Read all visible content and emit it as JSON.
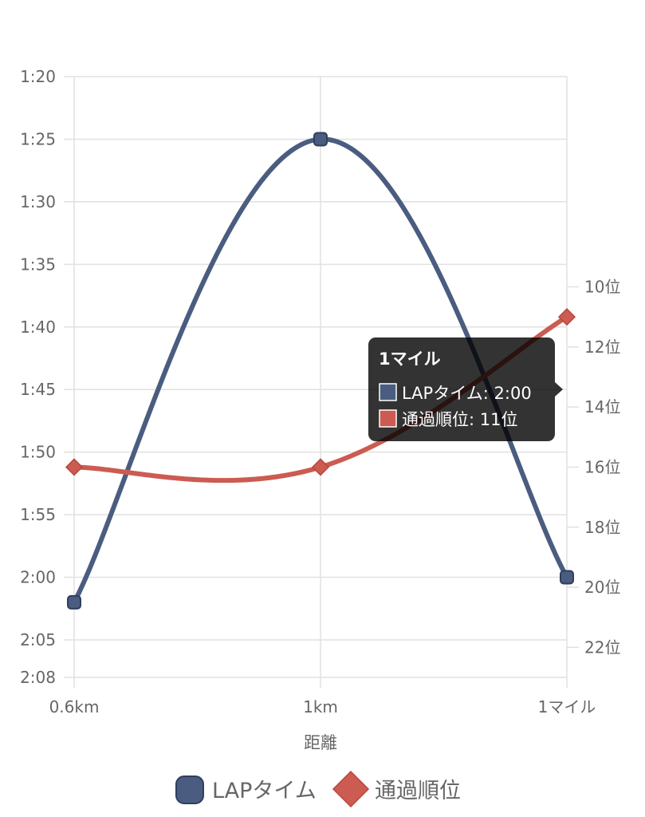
{
  "chart_data": {
    "type": "line",
    "categories": [
      "0.6km",
      "1km",
      "1マイル"
    ],
    "xlabel": "距離",
    "y_left": {
      "reversed": true,
      "range_seconds": [
        80,
        128
      ],
      "tick_values_seconds": [
        80,
        85,
        90,
        95,
        100,
        105,
        110,
        115,
        120,
        125,
        128
      ],
      "tick_labels": [
        "1:20",
        "1:25",
        "1:30",
        "1:35",
        "1:40",
        "1:45",
        "1:50",
        "1:55",
        "2:00",
        "2:05",
        "2:08"
      ]
    },
    "y_right": {
      "reversed": true,
      "range": [
        3,
        23
      ],
      "tick_values": [
        10,
        12,
        14,
        16,
        18,
        20,
        22
      ],
      "tick_labels": [
        "10位",
        "12位",
        "14位",
        "16位",
        "18位",
        "20位",
        "22位"
      ]
    },
    "series": [
      {
        "name": "LAPタイム",
        "axis": "left",
        "values": [
          122,
          85,
          120
        ],
        "color": "#4a5d80",
        "marker": "rounded-square"
      },
      {
        "name": "通過順位",
        "axis": "right",
        "values": [
          16,
          16,
          11
        ],
        "color": "#cc5b51",
        "marker": "diamond"
      }
    ],
    "tooltip": {
      "title": "1マイル",
      "lines": [
        "LAPタイム: 2:00",
        "通過順位: 11位"
      ]
    },
    "legend": {
      "position": "bottom",
      "items": [
        "LAPタイム",
        "通過順位"
      ]
    },
    "grid": true
  }
}
